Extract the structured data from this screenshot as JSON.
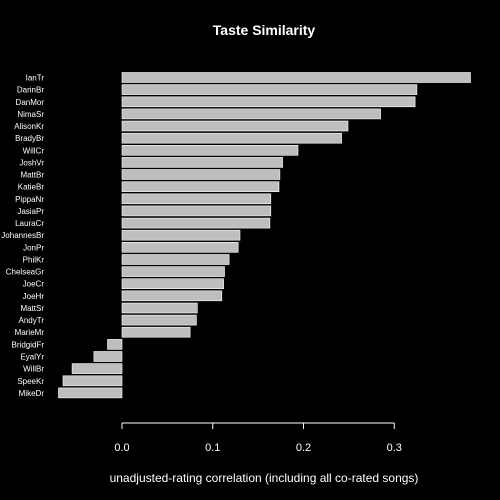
{
  "chart_data": {
    "type": "bar",
    "orientation": "horizontal",
    "title": "Taste Similarity",
    "xlabel": "unadjusted-rating correlation (including all co-rated songs)",
    "ylabel": "",
    "xlim": [
      -0.07,
      0.385
    ],
    "xticks": [
      0.0,
      0.1,
      0.2,
      0.3
    ],
    "xtick_labels": [
      "0.0",
      "0.1",
      "0.2",
      "0.3"
    ],
    "grid": false,
    "categories": [
      "IanTr",
      "DarinBr",
      "DanMor",
      "NimaSr",
      "AlisonKr",
      "BradyBr",
      "WillCr",
      "JoshVr",
      "MattBr",
      "KatieBr",
      "PippaNr",
      "JasiaPr",
      "LauraCr",
      "JohannesBr",
      "JonPr",
      "PhilKr",
      "ChelseaGr",
      "JoeCr",
      "JoeHr",
      "MattSr",
      "AndyTr",
      "MarieMr",
      "BridgidFr",
      "EyalYr",
      "WillBr",
      "SpeeKr",
      "MikeDr"
    ],
    "values": [
      0.384,
      0.325,
      0.323,
      0.285,
      0.249,
      0.242,
      0.194,
      0.177,
      0.174,
      0.173,
      0.164,
      0.164,
      0.163,
      0.13,
      0.128,
      0.118,
      0.113,
      0.112,
      0.11,
      0.083,
      0.082,
      0.075,
      -0.016,
      -0.031,
      -0.055,
      -0.065,
      -0.07
    ],
    "colors": {
      "background": "#000000",
      "bar": "#bebebe",
      "text": "#ffffff"
    }
  }
}
